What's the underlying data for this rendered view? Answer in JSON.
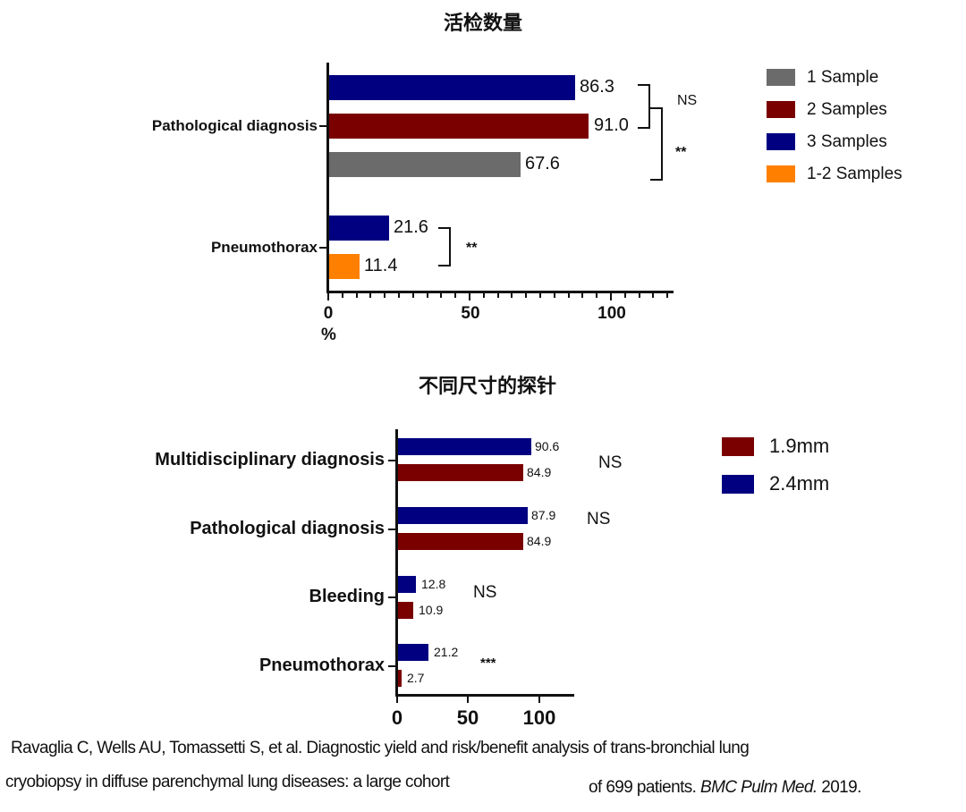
{
  "chart1": {
    "title": "活检数量",
    "xaxis": {
      "ticks": [
        "0",
        "50",
        "100"
      ],
      "unit": "%"
    },
    "categories": [
      "Pathological diagnosis",
      "Pneumothorax"
    ],
    "bars": [
      {
        "category": "Pathological diagnosis",
        "series": "3 Samples",
        "value": "86.3"
      },
      {
        "category": "Pathological diagnosis",
        "series": "2 Samples",
        "value": "91.0"
      },
      {
        "category": "Pathological diagnosis",
        "series": "1 Sample",
        "value": "67.6"
      },
      {
        "category": "Pneumothorax",
        "series": "3 Samples",
        "value": "21.6"
      },
      {
        "category": "Pneumothorax",
        "series": "1-2 Samples",
        "value": "11.4"
      }
    ],
    "significance": [
      "NS",
      "**",
      "**"
    ],
    "legend": [
      {
        "label": "1 Sample",
        "color": "#6b6b6b"
      },
      {
        "label": "2 Samples",
        "color": "#7a0000"
      },
      {
        "label": "3 Samples",
        "color": "#000080"
      },
      {
        "label": "1-2 Samples",
        "color": "#ff8000"
      }
    ]
  },
  "chart2": {
    "title": "不同尺寸的探针",
    "xaxis": {
      "ticks": [
        "0",
        "50",
        "100"
      ]
    },
    "categories": [
      "Multidisciplinary diagnosis",
      "Pathological diagnosis",
      "Bleeding",
      "Pneumothorax"
    ],
    "bars": [
      {
        "category": "Multidisciplinary diagnosis",
        "series": "2.4mm",
        "value": "90.6"
      },
      {
        "category": "Multidisciplinary diagnosis",
        "series": "1.9mm",
        "value": "84.9"
      },
      {
        "category": "Pathological diagnosis",
        "series": "2.4mm",
        "value": "87.9"
      },
      {
        "category": "Pathological diagnosis",
        "series": "1.9mm",
        "value": "84.9"
      },
      {
        "category": "Bleeding",
        "series": "2.4mm",
        "value": "12.8"
      },
      {
        "category": "Bleeding",
        "series": "1.9mm",
        "value": "10.9"
      },
      {
        "category": "Pneumothorax",
        "series": "2.4mm",
        "value": "21.2"
      },
      {
        "category": "Pneumothorax",
        "series": "1.9mm",
        "value": "2.7"
      }
    ],
    "significance": [
      "NS",
      "NS",
      "NS",
      "***"
    ],
    "legend": [
      {
        "label": "1.9mm",
        "color": "#7a0000"
      },
      {
        "label": "2.4mm",
        "color": "#000080"
      }
    ]
  },
  "citation": {
    "line1": "Ravaglia C, Wells AU, Tomassetti S, et al. Diagnostic yield and risk/benefit analysis of trans-bronchial lung",
    "line2a": "cryobiopsy in diffuse parenchymal lung diseases: a large cohort",
    "line2b": "of 699 patients.",
    "journal": "BMC Pulm Med.",
    "year": "2019."
  },
  "chart_data": [
    {
      "type": "bar",
      "orientation": "horizontal",
      "title": "活检数量",
      "xlabel": "%",
      "ylabel": "",
      "xlim": [
        0,
        120
      ],
      "xticks": [
        0,
        50,
        100
      ],
      "categories": [
        "Pathological diagnosis",
        "Pneumothorax"
      ],
      "series": [
        {
          "name": "3 Samples",
          "color": "#000080",
          "values": [
            86.3,
            21.6
          ]
        },
        {
          "name": "2 Samples",
          "color": "#7a0000",
          "values": [
            91.0,
            null
          ]
        },
        {
          "name": "1 Sample",
          "color": "#6b6b6b",
          "values": [
            67.6,
            null
          ]
        },
        {
          "name": "1-2 Samples",
          "color": "#ff8000",
          "values": [
            null,
            11.4
          ]
        }
      ],
      "annotations": [
        {
          "text": "NS",
          "between": [
            "3 Samples",
            "2 Samples"
          ],
          "category": "Pathological diagnosis"
        },
        {
          "text": "**",
          "between": [
            "2-3 Samples",
            "1 Sample"
          ],
          "category": "Pathological diagnosis"
        },
        {
          "text": "**",
          "between": [
            "3 Samples",
            "1-2 Samples"
          ],
          "category": "Pneumothorax"
        }
      ],
      "legend_position": "right",
      "grid": false
    },
    {
      "type": "bar",
      "orientation": "horizontal",
      "title": "不同尺寸的探针",
      "xlabel": "",
      "ylabel": "",
      "xlim": [
        0,
        120
      ],
      "xticks": [
        0,
        50,
        100
      ],
      "categories": [
        "Multidisciplinary diagnosis",
        "Pathological diagnosis",
        "Bleeding",
        "Pneumothorax"
      ],
      "series": [
        {
          "name": "2.4mm",
          "color": "#000080",
          "values": [
            90.6,
            87.9,
            12.8,
            21.2
          ]
        },
        {
          "name": "1.9mm",
          "color": "#7a0000",
          "values": [
            84.9,
            84.9,
            10.9,
            2.7
          ]
        }
      ],
      "annotations": [
        {
          "text": "NS",
          "category": "Multidisciplinary diagnosis"
        },
        {
          "text": "NS",
          "category": "Pathological diagnosis"
        },
        {
          "text": "NS",
          "category": "Bleeding"
        },
        {
          "text": "***",
          "category": "Pneumothorax"
        }
      ],
      "legend_position": "right",
      "grid": false
    }
  ]
}
